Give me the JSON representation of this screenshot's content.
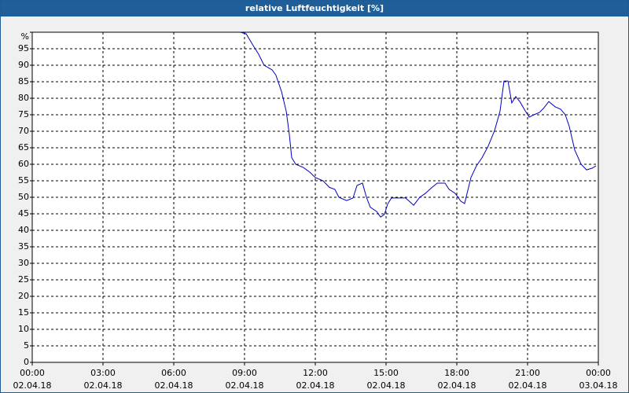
{
  "chart_data": {
    "type": "line",
    "title": "relative Luftfeuchtigkeit [%]",
    "x": [
      8.83,
      9.07,
      9.33,
      9.6,
      9.83,
      10.17,
      10.33,
      10.57,
      10.77,
      10.9,
      11.0,
      11.17,
      11.5,
      11.77,
      12.0,
      12.33,
      12.6,
      12.83,
      13.0,
      13.33,
      13.6,
      13.77,
      14.0,
      14.17,
      14.33,
      14.6,
      14.77,
      14.93,
      15.07,
      15.23,
      15.5,
      15.83,
      16.17,
      16.43,
      16.67,
      16.93,
      17.17,
      17.5,
      17.67,
      17.93,
      18.17,
      18.33,
      18.6,
      18.83,
      19.07,
      19.33,
      19.6,
      19.83,
      20.0,
      20.17,
      20.33,
      20.5,
      20.67,
      20.9,
      21.07,
      21.27,
      21.5,
      21.67,
      21.9,
      22.17,
      22.4,
      22.6,
      22.77,
      23.0,
      23.27,
      23.5,
      23.73,
      23.9
    ],
    "series": [
      {
        "name": "relative Luftfeuchtigkeit",
        "color": "#0000c0",
        "values": [
          100,
          99.5,
          96.4,
          93.3,
          90,
          88.6,
          87,
          82,
          76,
          69,
          62,
          60,
          59,
          57.6,
          56,
          55,
          53,
          52.4,
          50,
          49,
          49.8,
          53.6,
          54.3,
          50,
          47,
          45.7,
          44,
          44.8,
          48,
          49.8,
          49.8,
          49.8,
          47.6,
          50,
          51.2,
          52.9,
          54.3,
          54.3,
          52.4,
          51.2,
          48.8,
          48.1,
          56,
          59.5,
          62,
          65.5,
          70.2,
          76,
          85.2,
          85.2,
          78.6,
          80.5,
          79,
          76.2,
          74.3,
          75,
          75.7,
          76.9,
          79,
          77.4,
          76.7,
          75,
          71.4,
          64.3,
          60,
          58.3,
          58.8,
          59.5
        ]
      }
    ],
    "xlim": [
      0,
      24
    ],
    "xticks": [
      {
        "value": 0,
        "label": "00:00\n02.04.18"
      },
      {
        "value": 3,
        "label": "03:00\n02.04.18"
      },
      {
        "value": 6,
        "label": "06:00\n02.04.18"
      },
      {
        "value": 9,
        "label": "09:00\n02.04.18"
      },
      {
        "value": 12,
        "label": "12:00\n02.04.18"
      },
      {
        "value": 15,
        "label": "15:00\n02.04.18"
      },
      {
        "value": 18,
        "label": "18:00\n02.04.18"
      },
      {
        "value": 21,
        "label": "21:00\n02.04.18"
      },
      {
        "value": 24,
        "label": "00:00\n03.04.18"
      }
    ],
    "ylim": [
      0,
      100
    ],
    "yticks": [
      0,
      5,
      10,
      15,
      20,
      25,
      30,
      35,
      40,
      45,
      50,
      55,
      60,
      65,
      70,
      75,
      80,
      85,
      90,
      95,
      {
        "value": 100,
        "label": "%"
      }
    ],
    "grid": true
  }
}
